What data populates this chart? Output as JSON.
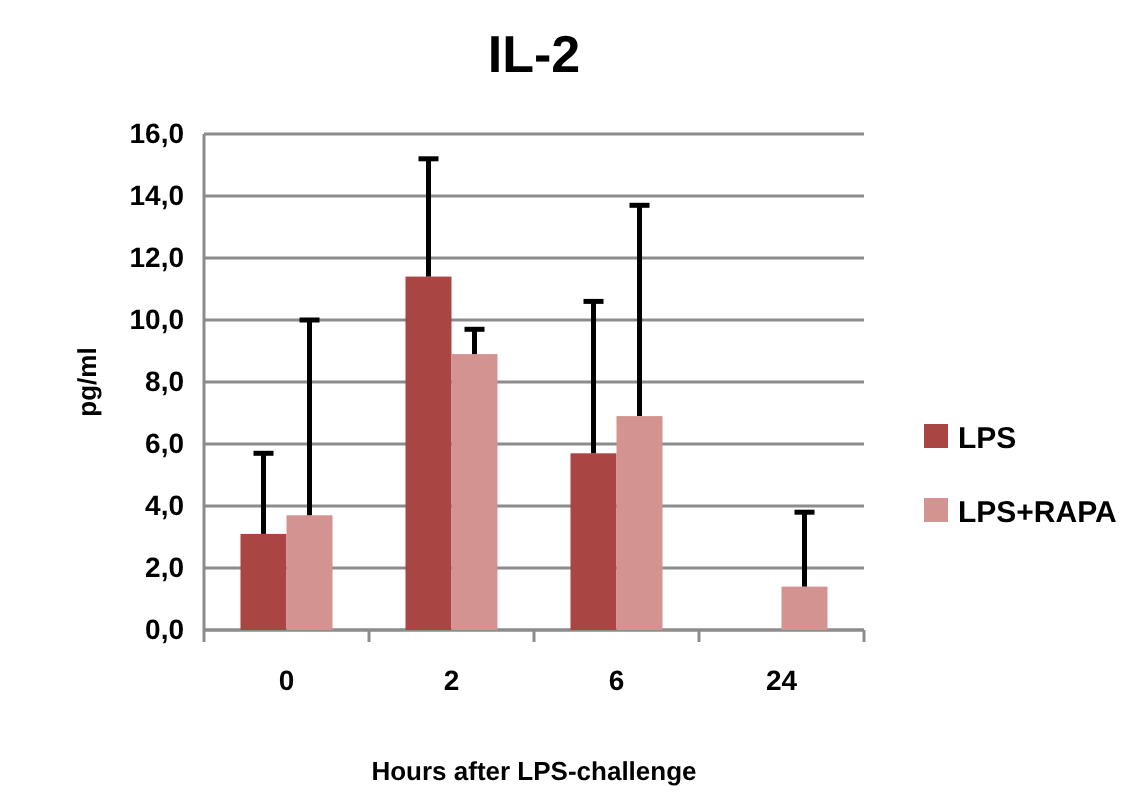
{
  "chart_data": {
    "type": "bar",
    "title": "IL-2",
    "xlabel": "Hours after LPS-challenge",
    "ylabel": "pg/ml",
    "categories": [
      "0",
      "2",
      "6",
      "24"
    ],
    "series": [
      {
        "name": "LPS",
        "color": "#a94542",
        "values": [
          3.1,
          11.4,
          5.7,
          null
        ],
        "errors": [
          [
            3.1,
            5.7
          ],
          [
            11.4,
            15.2
          ],
          [
            5.7,
            10.6
          ],
          null
        ]
      },
      {
        "name": "LPS+RAPA",
        "color": "#d39391",
        "values": [
          3.7,
          8.9,
          6.9,
          1.4
        ],
        "errors": [
          [
            3.7,
            10.0
          ],
          [
            8.9,
            9.7
          ],
          [
            6.9,
            13.7
          ],
          [
            1.4,
            3.8
          ]
        ]
      }
    ],
    "ylim": [
      0,
      16
    ],
    "yticks": [
      {
        "value": 0,
        "label": "0,0"
      },
      {
        "value": 2,
        "label": "2,0"
      },
      {
        "value": 4,
        "label": "4,0"
      },
      {
        "value": 6,
        "label": "6,0"
      },
      {
        "value": 8,
        "label": "8,0"
      },
      {
        "value": 10,
        "label": "10,0"
      },
      {
        "value": 12,
        "label": "12,0"
      },
      {
        "value": 14,
        "label": "14,0"
      },
      {
        "value": 16,
        "label": "16,0"
      }
    ],
    "grid": "y",
    "legend": "right"
  }
}
